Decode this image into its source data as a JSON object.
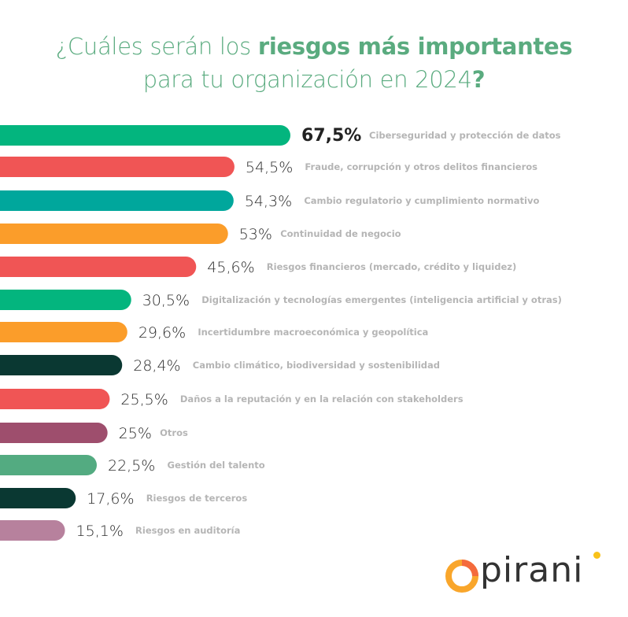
{
  "chart_data": {
    "type": "bar",
    "orientation": "horizontal",
    "title": "¿Cuáles serán los riesgos más importantes para tu organización en 2024?",
    "title_parts": {
      "line1_regular": "¿Cuáles serán los ",
      "line1_bold": "riesgos más importantes",
      "line2_regular": "para tu organización en 2024",
      "line2_bold": "?"
    },
    "xlabel": "",
    "ylabel": "",
    "xlim": [
      0,
      100
    ],
    "grid": false,
    "unit": "%",
    "categories": [
      "Ciberseguridad y protección de datos",
      "Fraude, corrupción y otros delitos financieros",
      "Cambio regulatorio y cumplimiento normativo",
      "Continuidad de negocio",
      "Riesgos financieros (mercado, crédito y liquidez)",
      "Digitalización y tecnologías emergentes (inteligencia artificial y otras)",
      "Incertidumbre macroeconómica y geopolítica",
      "Cambio climático, biodiversidad y sostenibilidad",
      "Daños a la reputación y en la relación con stakeholders",
      "Otros",
      "Gestión del talento",
      "Riesgos de terceros",
      "Riesgos en auditoría"
    ],
    "values": [
      67.5,
      54.5,
      54.3,
      53,
      45.6,
      30.5,
      29.6,
      28.4,
      25.5,
      25,
      22.5,
      17.6,
      15.1
    ],
    "value_labels": [
      "67,5%",
      "54,5%",
      "54,3%",
      "53%",
      "45,6%",
      "30,5%",
      "29,6%",
      "28,4%",
      "25,5%",
      "25%",
      "22,5%",
      "17,6%",
      "15,1%"
    ],
    "colors": [
      "#03b57e",
      "#f05555",
      "#00a79c",
      "#fb9d2a",
      "#f05555",
      "#03b57e",
      "#fb9d2a",
      "#0a3832",
      "#f05555",
      "#9e4e6d",
      "#53ab81",
      "#0a3832",
      "#b7819d"
    ]
  },
  "brand": {
    "logo_text": "pirani",
    "accent_orange": "#f9a62b",
    "accent_red": "#f46a3c",
    "accent_yellow": "#f8c21a",
    "title_color": "#5aab7f"
  }
}
